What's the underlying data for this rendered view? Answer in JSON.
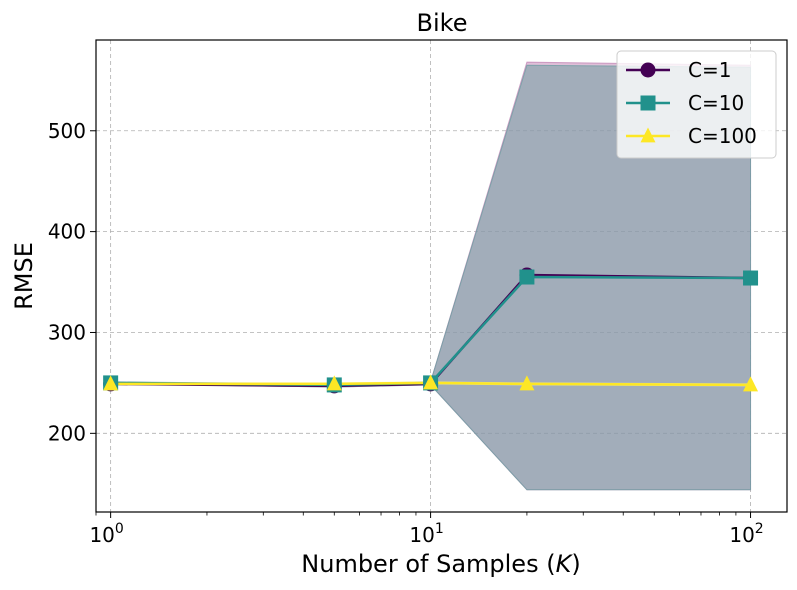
{
  "chart_data": {
    "type": "line",
    "title": "Bike",
    "xlabel_main": "Number of Samples (",
    "xlabel_var": "K",
    "xlabel_close": ")",
    "ylabel": "RMSE",
    "xscale": "log",
    "xlim": [
      0.9,
      130
    ],
    "ylim": [
      122,
      590
    ],
    "x": [
      1,
      5,
      10,
      20,
      100
    ],
    "xticks": [
      {
        "value": 1,
        "base": "10",
        "exp": "0"
      },
      {
        "value": 10,
        "base": "10",
        "exp": "1"
      },
      {
        "value": 100,
        "base": "10",
        "exp": "2"
      }
    ],
    "yticks": [
      {
        "value": 200,
        "label": "200"
      },
      {
        "value": 300,
        "label": "300"
      },
      {
        "value": 400,
        "label": "400"
      },
      {
        "value": 500,
        "label": "500"
      }
    ],
    "grid": true,
    "legend_position": "top-right",
    "series": [
      {
        "name": "C=1",
        "color": "#440154",
        "marker": "circle",
        "values": [
          249,
          247,
          249,
          357,
          354
        ],
        "band_lower": [
          249,
          246,
          248,
          144,
          144
        ],
        "band_upper": [
          250,
          248,
          251,
          568,
          565
        ],
        "band_color": "#c48ab8"
      },
      {
        "name": "C=10",
        "color": "#21918c",
        "marker": "square",
        "values": [
          250,
          248,
          250,
          355,
          354
        ],
        "band_lower": [
          249,
          246,
          248,
          144,
          144
        ],
        "band_upper": [
          251,
          249,
          251,
          565,
          563
        ],
        "band_color": "#6f9ea3"
      },
      {
        "name": "C=100",
        "color": "#fde725",
        "marker": "triangle",
        "values": [
          249,
          249,
          250,
          249,
          248
        ],
        "band_lower": [
          248,
          248,
          249,
          248,
          247
        ],
        "band_upper": [
          250,
          250,
          251,
          250,
          249
        ],
        "band_color": "#f7f0a0"
      }
    ]
  }
}
